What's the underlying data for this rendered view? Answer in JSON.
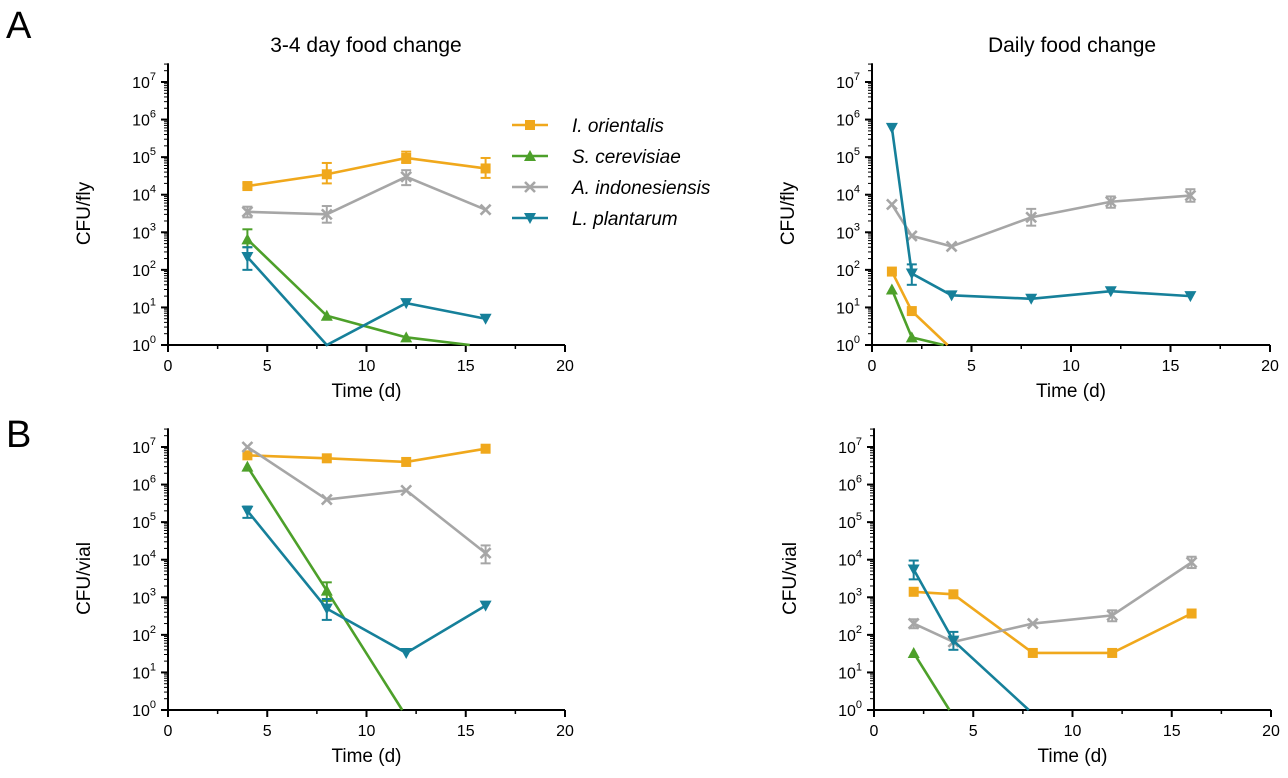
{
  "panel_labels": [
    "A",
    "B"
  ],
  "column_titles": [
    "3-4 day food change",
    "Daily food change"
  ],
  "legend": [
    {
      "name": "I. orientalis",
      "marker": "square",
      "color": "#F0A81C"
    },
    {
      "name": "S. cerevisiae",
      "marker": "triangle-up",
      "color": "#4DA02A"
    },
    {
      "name": "A. indonesiensis",
      "marker": "x",
      "color": "#A6A6A6"
    },
    {
      "name": "L. plantarum",
      "marker": "triangle-down",
      "color": "#16809A"
    }
  ],
  "chart_data": [
    {
      "type": "line",
      "panel": "A",
      "title": "3-4 day food change",
      "xlabel": "Time (d)",
      "ylabel": "CFU/fly",
      "xlim": [
        0,
        20
      ],
      "ylim": [
        1,
        10000000
      ],
      "yscale": "log",
      "xticks": [
        0,
        5,
        10,
        15,
        20
      ],
      "yticks": [
        {
          "base": "10",
          "exp": "0"
        },
        {
          "base": "10",
          "exp": "1"
        },
        {
          "base": "10",
          "exp": "2"
        },
        {
          "base": "10",
          "exp": "3"
        },
        {
          "base": "10",
          "exp": "4"
        },
        {
          "base": "10",
          "exp": "5"
        },
        {
          "base": "10",
          "exp": "6"
        },
        {
          "base": "10",
          "exp": "7"
        }
      ],
      "series": [
        {
          "name": "I. orientalis",
          "x": [
            4,
            8,
            12,
            16
          ],
          "y": [
            17000,
            35000,
            95000,
            50000
          ],
          "err_low": [
            15000,
            20000,
            70000,
            28000
          ],
          "err_high": [
            20000,
            70000,
            140000,
            95000
          ]
        },
        {
          "name": "S. cerevisiae",
          "x": [
            4,
            8,
            12,
            15.2
          ],
          "y": [
            650,
            6,
            1.6,
            1
          ],
          "err_low": [
            400,
            null,
            null,
            null
          ],
          "err_high": [
            1200,
            null,
            null,
            null
          ]
        },
        {
          "name": "A. indonesiensis",
          "x": [
            4,
            8,
            12,
            16
          ],
          "y": [
            3500,
            3000,
            30000,
            4000
          ],
          "err_low": [
            2500,
            1800,
            18000,
            null
          ],
          "err_high": [
            4800,
            5000,
            45000,
            null
          ]
        },
        {
          "name": "L. plantarum",
          "x": [
            4,
            8,
            12,
            16
          ],
          "y": [
            220,
            1,
            13,
            5
          ],
          "err_low": [
            100,
            null,
            null,
            null
          ],
          "err_high": [
            400,
            null,
            null,
            null
          ]
        }
      ]
    },
    {
      "type": "line",
      "panel": "A",
      "title": "Daily food change",
      "xlabel": "Time (d)",
      "ylabel": "CFU/fly",
      "xlim": [
        0,
        20
      ],
      "ylim": [
        1,
        10000000
      ],
      "yscale": "log",
      "xticks": [
        0,
        5,
        10,
        15,
        20
      ],
      "yticks": [
        {
          "base": "10",
          "exp": "0"
        },
        {
          "base": "10",
          "exp": "1"
        },
        {
          "base": "10",
          "exp": "2"
        },
        {
          "base": "10",
          "exp": "3"
        },
        {
          "base": "10",
          "exp": "4"
        },
        {
          "base": "10",
          "exp": "5"
        },
        {
          "base": "10",
          "exp": "6"
        },
        {
          "base": "10",
          "exp": "7"
        }
      ],
      "series": [
        {
          "name": "I. orientalis",
          "x": [
            1,
            2,
            3.8
          ],
          "y": [
            90,
            8,
            1
          ],
          "err_low": [
            null,
            null,
            null
          ],
          "err_high": [
            null,
            null,
            null
          ]
        },
        {
          "name": "S. cerevisiae",
          "x": [
            1,
            2,
            3.6
          ],
          "y": [
            30,
            1.6,
            1
          ],
          "err_low": [
            null,
            null,
            null
          ],
          "err_high": [
            null,
            null,
            null
          ]
        },
        {
          "name": "A. indonesiensis",
          "x": [
            1,
            2,
            4,
            8,
            12,
            16
          ],
          "y": [
            5500,
            800,
            420,
            2500,
            6500,
            9500
          ],
          "err_low": [
            null,
            null,
            null,
            1500,
            4500,
            6500
          ],
          "err_high": [
            null,
            null,
            null,
            4200,
            9000,
            14000
          ]
        },
        {
          "name": "L. plantarum",
          "x": [
            1,
            2,
            4,
            8,
            12,
            16
          ],
          "y": [
            600000,
            80,
            21,
            17,
            27,
            20
          ],
          "err_low": [
            null,
            40,
            null,
            null,
            null,
            null
          ],
          "err_high": [
            null,
            140,
            null,
            null,
            null,
            null
          ]
        }
      ]
    },
    {
      "type": "line",
      "panel": "B",
      "title": "",
      "xlabel": "Time (d)",
      "ylabel": "CFU/vial",
      "xlim": [
        0,
        20
      ],
      "ylim": [
        1,
        10000000
      ],
      "yscale": "log",
      "xticks": [
        0,
        5,
        10,
        15,
        20
      ],
      "yticks": [
        {
          "base": "10",
          "exp": "0"
        },
        {
          "base": "10",
          "exp": "1"
        },
        {
          "base": "10",
          "exp": "2"
        },
        {
          "base": "10",
          "exp": "3"
        },
        {
          "base": "10",
          "exp": "4"
        },
        {
          "base": "10",
          "exp": "5"
        },
        {
          "base": "10",
          "exp": "6"
        },
        {
          "base": "10",
          "exp": "7"
        }
      ],
      "series": [
        {
          "name": "I. orientalis",
          "x": [
            4,
            8,
            12,
            16
          ],
          "y": [
            6000000,
            5000000,
            4000000,
            9000000
          ],
          "err_low": [
            null,
            null,
            null,
            null
          ],
          "err_high": [
            null,
            null,
            null,
            null
          ]
        },
        {
          "name": "S. cerevisiae",
          "x": [
            4,
            8,
            11.8
          ],
          "y": [
            3000000,
            1500,
            1
          ],
          "err_low": [
            null,
            800,
            null
          ],
          "err_high": [
            null,
            2500,
            null
          ]
        },
        {
          "name": "A. indonesiensis",
          "x": [
            4,
            8,
            12,
            16
          ],
          "y": [
            10000000,
            400000,
            700000,
            15000
          ],
          "err_low": [
            null,
            null,
            null,
            8000
          ],
          "err_high": [
            null,
            null,
            null,
            24000
          ]
        },
        {
          "name": "L. plantarum",
          "x": [
            4,
            8,
            12,
            16
          ],
          "y": [
            200000,
            500,
            33,
            600
          ],
          "err_low": [
            130000,
            250,
            null,
            null
          ],
          "err_high": [
            260000,
            900,
            null,
            null
          ]
        }
      ]
    },
    {
      "type": "line",
      "panel": "B",
      "title": "",
      "xlabel": "Time (d)",
      "ylabel": "CFU/vial",
      "xlim": [
        0,
        20
      ],
      "ylim": [
        1,
        10000000
      ],
      "yscale": "log",
      "xticks": [
        0,
        5,
        10,
        15,
        20
      ],
      "yticks": [
        {
          "base": "10",
          "exp": "0"
        },
        {
          "base": "10",
          "exp": "1"
        },
        {
          "base": "10",
          "exp": "2"
        },
        {
          "base": "10",
          "exp": "3"
        },
        {
          "base": "10",
          "exp": "4"
        },
        {
          "base": "10",
          "exp": "5"
        },
        {
          "base": "10",
          "exp": "6"
        },
        {
          "base": "10",
          "exp": "7"
        }
      ],
      "series": [
        {
          "name": "I. orientalis",
          "x": [
            2,
            4,
            8,
            12,
            16
          ],
          "y": [
            1400,
            1200,
            33,
            33,
            370
          ],
          "err_low": [
            null,
            null,
            null,
            null,
            null
          ],
          "err_high": [
            null,
            null,
            null,
            null,
            null
          ]
        },
        {
          "name": "S. cerevisiae",
          "x": [
            2,
            3.8
          ],
          "y": [
            33,
            1
          ],
          "err_low": [
            null,
            null
          ],
          "err_high": [
            null,
            null
          ]
        },
        {
          "name": "A. indonesiensis",
          "x": [
            2,
            4,
            8,
            12,
            16
          ],
          "y": [
            200,
            65,
            200,
            330,
            8500
          ],
          "err_low": [
            150,
            null,
            null,
            230,
            6000
          ],
          "err_high": [
            260,
            null,
            null,
            450,
            12000
          ]
        },
        {
          "name": "L. plantarum",
          "x": [
            2,
            4,
            7.8
          ],
          "y": [
            5500,
            70,
            1
          ],
          "err_low": [
            3000,
            40,
            null
          ],
          "err_high": [
            9500,
            120,
            null
          ]
        }
      ]
    }
  ]
}
